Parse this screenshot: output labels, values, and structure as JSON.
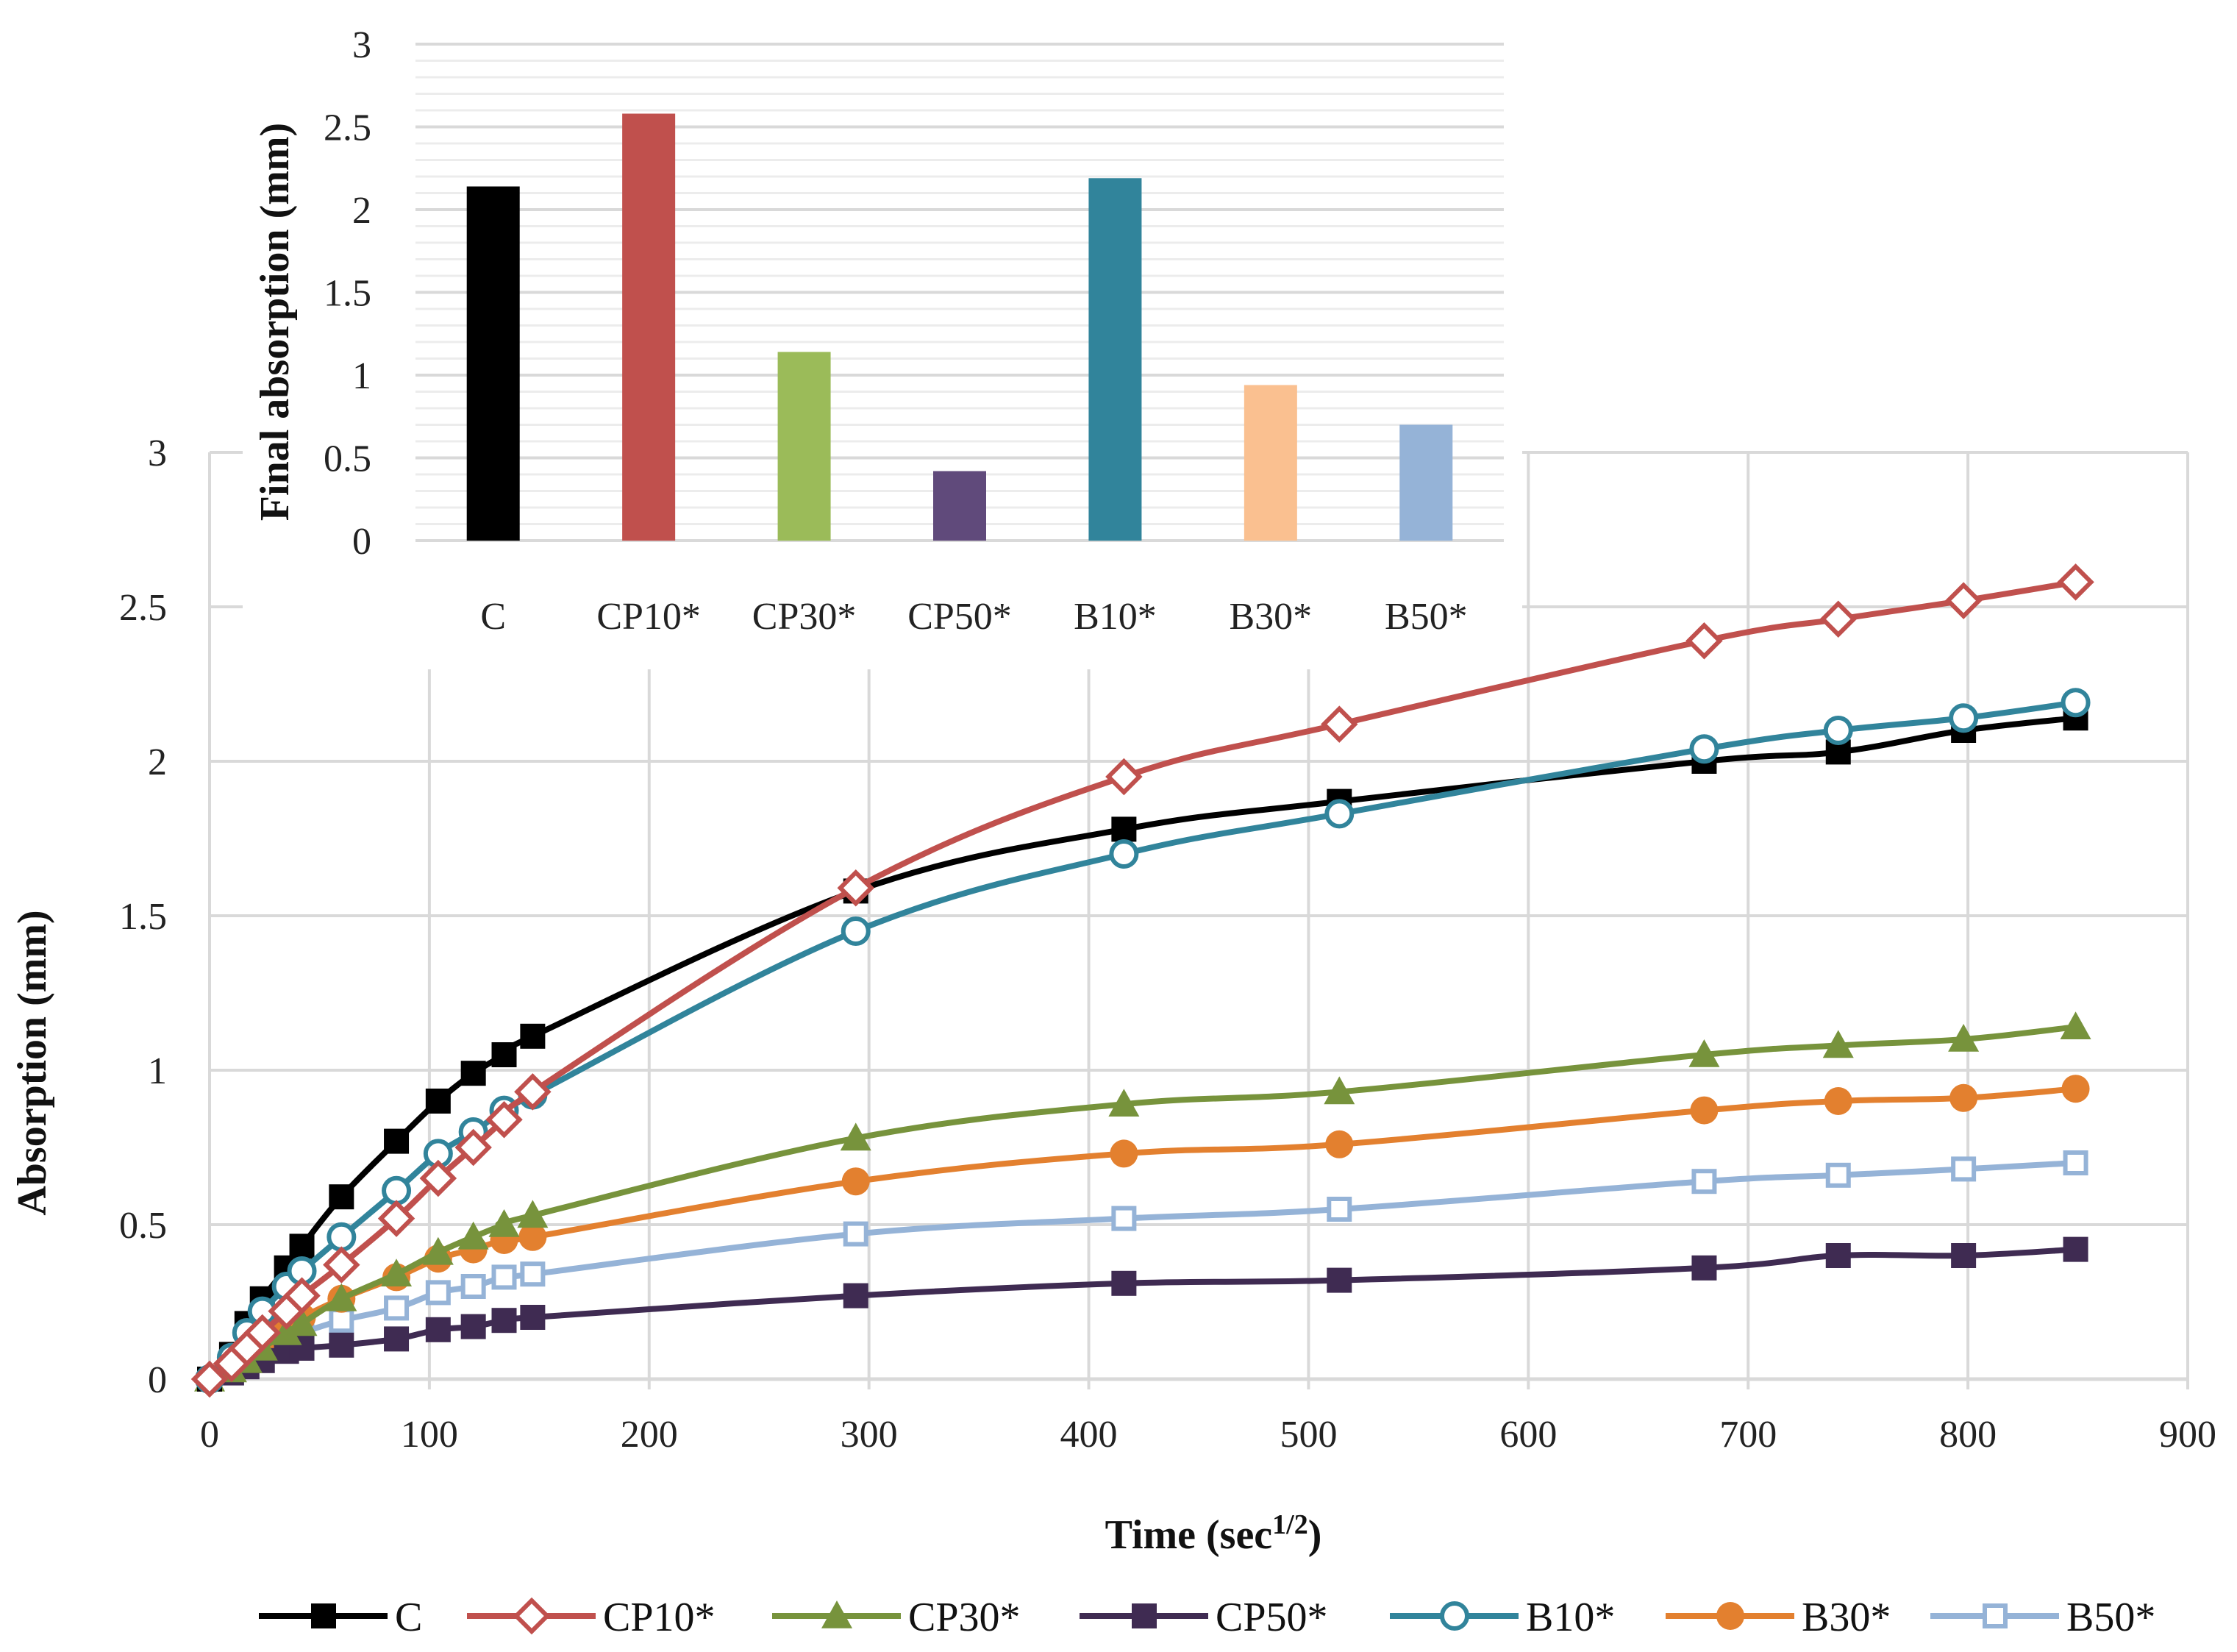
{
  "chart_data": [
    {
      "type": "line",
      "xlabel": "Time (sec",
      "xlabel_sup": "1/2",
      "xlabel_close": ")",
      "ylabel": "Absorption (mm)",
      "xlim": [
        0,
        900
      ],
      "ylim": [
        0,
        3
      ],
      "xticks": [
        "0",
        "100",
        "200",
        "300",
        "400",
        "500",
        "600",
        "700",
        "800",
        "900"
      ],
      "yticks": [
        "0",
        "0.5",
        "1",
        "1.5",
        "2",
        "2.5",
        "3"
      ],
      "grid": true,
      "legend_position": "bottom",
      "x": [
        0,
        10,
        17,
        24,
        35,
        42,
        60,
        85,
        104,
        120,
        134,
        147,
        294,
        416,
        514,
        680,
        741,
        798,
        849
      ],
      "series": [
        {
          "name": "C",
          "color": "#000000",
          "marker": "filled-square",
          "values": [
            0,
            0.08,
            0.18,
            0.26,
            0.36,
            0.43,
            0.59,
            0.77,
            0.9,
            0.99,
            1.05,
            1.11,
            1.58,
            1.78,
            1.87,
            2.0,
            2.03,
            2.1,
            2.14
          ]
        },
        {
          "name": "CP10*",
          "color": "#C0504D",
          "marker": "open-diamond",
          "values": [
            0,
            0.05,
            0.1,
            0.15,
            0.22,
            0.27,
            0.37,
            0.52,
            0.65,
            0.75,
            0.84,
            0.93,
            1.59,
            1.95,
            2.12,
            2.39,
            2.46,
            2.52,
            2.58
          ]
        },
        {
          "name": "CP30*",
          "color": "#77933C",
          "marker": "filled-triangle",
          "values": [
            0,
            0.03,
            0.06,
            0.1,
            0.15,
            0.18,
            0.26,
            0.34,
            0.41,
            0.46,
            0.5,
            0.53,
            0.78,
            0.89,
            0.93,
            1.05,
            1.08,
            1.1,
            1.14
          ]
        },
        {
          "name": "CP50*",
          "color": "#3F2B52",
          "marker": "filled-square",
          "values": [
            0,
            0.02,
            0.04,
            0.06,
            0.09,
            0.1,
            0.11,
            0.13,
            0.16,
            0.17,
            0.19,
            0.2,
            0.27,
            0.31,
            0.32,
            0.36,
            0.4,
            0.4,
            0.42
          ]
        },
        {
          "name": "B10*",
          "color": "#31849B",
          "marker": "open-circle",
          "values": [
            0,
            0.07,
            0.15,
            0.22,
            0.3,
            0.35,
            0.46,
            0.61,
            0.73,
            0.8,
            0.87,
            0.92,
            1.45,
            1.7,
            1.83,
            2.04,
            2.1,
            2.14,
            2.19
          ]
        },
        {
          "name": "B30*",
          "color": "#E3802F",
          "marker": "filled-circle",
          "values": [
            0,
            0.03,
            0.08,
            0.12,
            0.17,
            0.2,
            0.26,
            0.33,
            0.39,
            0.42,
            0.45,
            0.46,
            0.64,
            0.73,
            0.76,
            0.87,
            0.9,
            0.91,
            0.94
          ]
        },
        {
          "name": "B50*",
          "color": "#95B3D7",
          "marker": "open-square",
          "values": [
            0,
            0.03,
            0.06,
            0.09,
            0.13,
            0.15,
            0.19,
            0.23,
            0.28,
            0.3,
            0.33,
            0.34,
            0.47,
            0.52,
            0.55,
            0.64,
            0.66,
            0.68,
            0.7
          ]
        }
      ]
    },
    {
      "type": "bar",
      "ylabel": "Final absorption (mm)",
      "ylim": [
        0,
        3
      ],
      "yticks": [
        "0",
        "0.5",
        "1",
        "1.5",
        "2",
        "2.5",
        "3"
      ],
      "grid": true,
      "categories": [
        "C",
        "CP10*",
        "CP30*",
        "CP50*",
        "B10*",
        "B30*",
        "B50*"
      ],
      "values": [
        2.14,
        2.58,
        1.14,
        0.42,
        2.19,
        0.94,
        0.7
      ],
      "colors": [
        "#000000",
        "#C0504D",
        "#9BBB59",
        "#604A7B",
        "#31849B",
        "#FAC090",
        "#95B3D7"
      ]
    }
  ]
}
